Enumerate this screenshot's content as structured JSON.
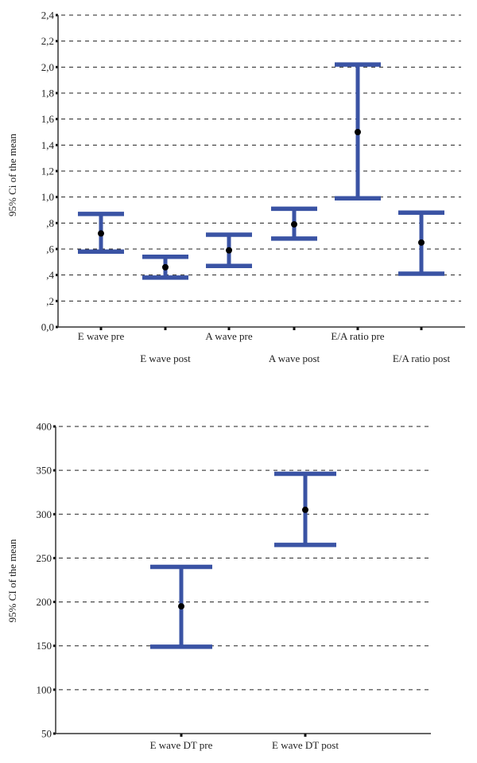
{
  "chart_data": [
    {
      "type": "errorbar",
      "title": "",
      "xlabel": "",
      "ylabel": "95% Ci of the mean",
      "ylim": [
        0,
        2.4
      ],
      "yticks": [
        0.0,
        0.2,
        0.4,
        0.6,
        0.8,
        1.0,
        1.2,
        1.4,
        1.6,
        1.8,
        2.0,
        2.2,
        2.4
      ],
      "ytick_labels": [
        "0,0",
        ",2",
        ",4",
        ",6",
        ",8",
        "1,0",
        "1,2",
        "1,4",
        "1,6",
        "1,8",
        "2,0",
        "2,2",
        "2,4"
      ],
      "grid": true,
      "color": "#3a53a4",
      "categories": [
        "E wave pre",
        "E wave post",
        "A wave pre",
        "A wave post",
        "E/A ratio pre",
        "E/A ratio post"
      ],
      "series": [
        {
          "name": "95% CI",
          "mean": [
            0.72,
            0.46,
            0.59,
            0.79,
            1.5,
            0.65
          ],
          "lower": [
            0.58,
            0.38,
            0.47,
            0.68,
            0.99,
            0.41
          ],
          "upper": [
            0.87,
            0.54,
            0.71,
            0.91,
            2.02,
            0.88
          ]
        }
      ]
    },
    {
      "type": "errorbar",
      "title": "",
      "xlabel": "",
      "ylabel": "95% CI of the mean",
      "ylim": [
        50,
        400
      ],
      "yticks": [
        50,
        100,
        150,
        200,
        250,
        300,
        350,
        400
      ],
      "ytick_labels": [
        "50",
        "100",
        "150",
        "200",
        "250",
        "300",
        "350",
        "400"
      ],
      "grid": true,
      "color": "#3a53a4",
      "categories": [
        "E wave DT pre",
        "E wave DT post"
      ],
      "series": [
        {
          "name": "95% CI",
          "mean": [
            195,
            305
          ],
          "lower": [
            149,
            265
          ],
          "upper": [
            240,
            346
          ]
        }
      ]
    }
  ]
}
